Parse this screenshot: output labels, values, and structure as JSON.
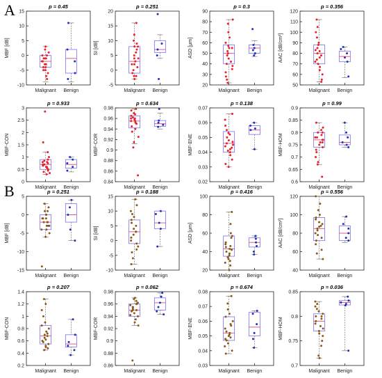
{
  "panel_labels": [
    "A",
    "B"
  ],
  "colors": {
    "box": "#8a7cf0",
    "median": "#e05a8a",
    "mean_marker": "#9a9aee",
    "whisker": "#777777",
    "axis": "#222222",
    "malignant_points_A": "#e8202a",
    "benign_points_A": "#2233bb",
    "malignant_points_B": "#8a5a1a",
    "benign_points_B": "#2233aa"
  },
  "chart_data": [
    {
      "type": "box",
      "group": "A",
      "title": "p = 0.45",
      "ylabel": "MBF [dB]",
      "categories": [
        "Malignant",
        "Benign"
      ],
      "ylim": [
        -10,
        15
      ],
      "yticks": [
        -10,
        -5,
        0,
        5,
        10,
        15
      ],
      "boxes": [
        {
          "q1": -4,
          "median": -2,
          "q3": 0,
          "whisker_low": -9,
          "whisker_high": 3
        },
        {
          "q1": -6,
          "median": -1,
          "q3": 2,
          "whisker_low": -9,
          "whisker_high": 11
        }
      ],
      "points": [
        [
          -1,
          -3,
          0,
          -5,
          2,
          -4,
          -2,
          1,
          -7,
          -3,
          -1,
          -6,
          0,
          -2,
          3,
          -4,
          -8,
          -2,
          -1,
          -5
        ],
        [
          11,
          2,
          -2,
          -6,
          -8
        ]
      ]
    },
    {
      "type": "box",
      "group": "A",
      "title": "p = 0.251",
      "ylabel": "SI [dB]",
      "categories": [
        "Malignant",
        "Benign"
      ],
      "ylim": [
        -5,
        20
      ],
      "yticks": [
        -5,
        0,
        5,
        10,
        15,
        20
      ],
      "boxes": [
        {
          "q1": -1,
          "median": 3,
          "q3": 8,
          "whisker_low": -3,
          "whisker_high": 16
        },
        {
          "q1": 6,
          "median": 7,
          "q3": 10,
          "whisker_low": 4,
          "whisker_high": 12
        }
      ],
      "points": [
        [
          16,
          12,
          9,
          8,
          7,
          5,
          4,
          3,
          2,
          1,
          0,
          -1,
          -2,
          -3,
          2,
          6,
          10,
          -2,
          4,
          8
        ],
        [
          19,
          9,
          7,
          5,
          -3
        ]
      ]
    },
    {
      "type": "box",
      "group": "A",
      "title": "p = 0.3",
      "ylabel": "ASD [μm]",
      "categories": [
        "Malignant",
        "Benign"
      ],
      "ylim": [
        20,
        90
      ],
      "yticks": [
        20,
        30,
        40,
        50,
        60,
        70,
        80,
        90
      ],
      "boxes": [
        {
          "q1": 40,
          "median": 50,
          "q3": 58,
          "whisker_low": 22,
          "whisker_high": 82
        },
        {
          "q1": 50,
          "median": 55,
          "q3": 58,
          "whisker_low": 47,
          "whisker_high": 62
        }
      ],
      "points": [
        [
          82,
          78,
          70,
          65,
          60,
          57,
          55,
          52,
          50,
          48,
          45,
          42,
          40,
          38,
          35,
          32,
          28,
          25,
          22,
          55
        ],
        [
          73,
          58,
          55,
          53,
          50,
          48
        ]
      ]
    },
    {
      "type": "box",
      "group": "A",
      "title": "p = 0.356",
      "ylabel": "AAC [dB/cm³]",
      "categories": [
        "Malignant",
        "Benign"
      ],
      "ylim": [
        50,
        120
      ],
      "yticks": [
        50,
        60,
        70,
        80,
        90,
        100,
        110,
        120
      ],
      "boxes": [
        {
          "q1": 70,
          "median": 80,
          "q3": 88,
          "whisker_low": 53,
          "whisker_high": 112
        },
        {
          "q1": 72,
          "median": 77,
          "q3": 82,
          "whisker_low": 57,
          "whisker_high": 86
        }
      ],
      "points": [
        [
          112,
          105,
          100,
          95,
          90,
          88,
          85,
          83,
          80,
          78,
          76,
          74,
          72,
          70,
          67,
          64,
          60,
          55,
          53,
          82
        ],
        [
          86,
          84,
          80,
          76,
          72,
          58
        ]
      ]
    },
    {
      "type": "box",
      "group": "A",
      "title": "p = 0.933",
      "ylabel": "MBF-CON",
      "categories": [
        "Malignant",
        "Benign"
      ],
      "ylim": [
        0,
        3
      ],
      "yticks": [
        0,
        0.5,
        1,
        1.5,
        2,
        2.5,
        3
      ],
      "boxes": [
        {
          "q1": 0.5,
          "median": 0.7,
          "q3": 0.9,
          "whisker_low": 0.3,
          "whisker_high": 1.2
        },
        {
          "q1": 0.55,
          "median": 0.7,
          "q3": 0.9,
          "whisker_low": 0.4,
          "whisker_high": 1.0
        }
      ],
      "points": [
        [
          2.85,
          1.6,
          1.2,
          1.0,
          0.9,
          0.85,
          0.8,
          0.75,
          0.7,
          0.65,
          0.6,
          0.55,
          0.5,
          0.45,
          0.4,
          0.35,
          0.3,
          0.7,
          0.8,
          0.6
        ],
        [
          1.0,
          0.9,
          0.75,
          0.6,
          0.45
        ]
      ]
    },
    {
      "type": "box",
      "group": "A",
      "title": "p = 0.634",
      "ylabel": "MBF-COR",
      "categories": [
        "Malignant",
        "Benign"
      ],
      "ylim": [
        0.84,
        0.98
      ],
      "yticks": [
        0.84,
        0.86,
        0.88,
        0.9,
        0.92,
        0.94,
        0.96,
        0.98
      ],
      "boxes": [
        {
          "q1": 0.942,
          "median": 0.955,
          "q3": 0.965,
          "whisker_low": 0.912,
          "whisker_high": 0.978
        },
        {
          "q1": 0.945,
          "median": 0.95,
          "q3": 0.956,
          "whisker_low": 0.94,
          "whisker_high": 0.97
        }
      ],
      "points": [
        [
          0.978,
          0.975,
          0.97,
          0.968,
          0.965,
          0.962,
          0.96,
          0.958,
          0.955,
          0.952,
          0.95,
          0.945,
          0.94,
          0.935,
          0.925,
          0.915,
          0.905,
          0.852,
          0.96,
          0.955
        ],
        [
          0.978,
          0.956,
          0.952,
          0.948,
          0.944
        ]
      ]
    },
    {
      "type": "box",
      "group": "A",
      "title": "p = 0.138",
      "ylabel": "MBF-ENE",
      "categories": [
        "Malignant",
        "Benign"
      ],
      "ylim": [
        0.02,
        0.07
      ],
      "yticks": [
        0.02,
        0.03,
        0.04,
        0.05,
        0.06,
        0.07
      ],
      "boxes": [
        {
          "q1": 0.04,
          "median": 0.046,
          "q3": 0.054,
          "whisker_low": 0.03,
          "whisker_high": 0.066
        },
        {
          "q1": 0.052,
          "median": 0.055,
          "q3": 0.058,
          "whisker_low": 0.042,
          "whisker_high": 0.06
        }
      ],
      "points": [
        [
          0.066,
          0.062,
          0.058,
          0.055,
          0.053,
          0.05,
          0.048,
          0.046,
          0.045,
          0.044,
          0.043,
          0.042,
          0.041,
          0.04,
          0.038,
          0.035,
          0.032,
          0.03,
          0.047,
          0.052
        ],
        [
          0.06,
          0.058,
          0.056,
          0.055,
          0.042
        ]
      ]
    },
    {
      "type": "box",
      "group": "A",
      "title": "p = 0.99",
      "ylabel": "MBF-HOM",
      "categories": [
        "Malignant",
        "Benign"
      ],
      "ylim": [
        0.6,
        0.9
      ],
      "yticks": [
        0.6,
        0.65,
        0.7,
        0.75,
        0.8,
        0.85,
        0.9
      ],
      "boxes": [
        {
          "q1": 0.74,
          "median": 0.77,
          "q3": 0.8,
          "whisker_low": 0.67,
          "whisker_high": 0.84
        },
        {
          "q1": 0.75,
          "median": 0.76,
          "q3": 0.79,
          "whisker_low": 0.74,
          "whisker_high": 0.84
        }
      ],
      "points": [
        [
          0.84,
          0.82,
          0.81,
          0.8,
          0.79,
          0.78,
          0.77,
          0.77,
          0.76,
          0.75,
          0.74,
          0.73,
          0.72,
          0.7,
          0.68,
          0.67,
          0.62,
          0.78,
          0.8,
          0.76
        ],
        [
          0.84,
          0.8,
          0.78,
          0.76,
          0.75,
          0.74
        ]
      ]
    },
    {
      "type": "box",
      "group": "B",
      "title": "p = 0.251",
      "ylabel": "MBF [dB]",
      "categories": [
        "Malignant",
        "Benign"
      ],
      "ylim": [
        -15,
        5
      ],
      "yticks": [
        -15,
        -10,
        -5,
        0,
        5
      ],
      "boxes": [
        {
          "q1": -4,
          "median": -2,
          "q3": 0,
          "whisker_low": -6,
          "whisker_high": 3
        },
        {
          "q1": -2,
          "median": 0,
          "q3": 3,
          "whisker_low": -7,
          "whisker_high": 4
        }
      ],
      "points": [
        [
          3,
          2,
          1,
          0,
          -1,
          -1,
          -2,
          -2,
          -3,
          -3,
          -4,
          -4,
          -5,
          -6,
          -14,
          -2,
          0,
          -1,
          1,
          -3
        ],
        [
          4,
          2,
          0,
          -4,
          -7
        ]
      ]
    },
    {
      "type": "box",
      "group": "B",
      "title": "p = 0.188",
      "ylabel": "SI [dB]",
      "categories": [
        "Malignant",
        "Benign"
      ],
      "ylim": [
        -10,
        15
      ],
      "yticks": [
        -10,
        -5,
        0,
        5,
        10,
        15
      ],
      "boxes": [
        {
          "q1": -1,
          "median": 3,
          "q3": 7,
          "whisker_low": -8,
          "whisker_high": 14
        },
        {
          "q1": 4,
          "median": 6,
          "q3": 10,
          "whisker_low": -2,
          "whisker_high": 10
        }
      ],
      "points": [
        [
          14,
          12,
          10,
          9,
          8,
          6,
          5,
          4,
          3,
          2,
          1,
          0,
          -1,
          -2,
          -3,
          -4,
          -6,
          -8,
          7,
          3
        ],
        [
          10,
          9,
          6,
          4,
          -2
        ]
      ]
    },
    {
      "type": "box",
      "group": "B",
      "title": "p = 0.416",
      "ylabel": "ASD [μm]",
      "categories": [
        "Malignant",
        "Benign"
      ],
      "ylim": [
        20,
        100
      ],
      "yticks": [
        20,
        40,
        60,
        80,
        100
      ],
      "boxes": [
        {
          "q1": 35,
          "median": 43,
          "q3": 57,
          "whisker_low": 20,
          "whisker_high": 83
        },
        {
          "q1": 45,
          "median": 50,
          "q3": 55,
          "whisker_low": 37,
          "whisker_high": 57
        }
      ],
      "points": [
        [
          83,
          70,
          60,
          57,
          55,
          50,
          48,
          45,
          43,
          42,
          40,
          38,
          36,
          34,
          32,
          30,
          28,
          25,
          20,
          46
        ],
        [
          57,
          54,
          50,
          46,
          40,
          37
        ]
      ]
    },
    {
      "type": "box",
      "group": "B",
      "title": "p = 0.556",
      "ylabel": "AAC [dB/cm³]",
      "categories": [
        "Malignant",
        "Benign"
      ],
      "ylim": [
        40,
        120
      ],
      "yticks": [
        40,
        60,
        80,
        100,
        120
      ],
      "boxes": [
        {
          "q1": 72,
          "median": 85,
          "q3": 97,
          "whisker_low": 52,
          "whisker_high": 120
        },
        {
          "q1": 72,
          "median": 80,
          "q3": 88,
          "whisker_low": 70,
          "whisker_high": 98
        }
      ],
      "points": [
        [
          120,
          112,
          105,
          100,
          97,
          95,
          92,
          90,
          87,
          85,
          83,
          80,
          78,
          75,
          72,
          68,
          62,
          58,
          52,
          88
        ],
        [
          98,
          90,
          85,
          80,
          75,
          72
        ]
      ]
    },
    {
      "type": "box",
      "group": "B",
      "title": "p = 0.207",
      "ylabel": "MBF-CON",
      "categories": [
        "Malignant",
        "Benign"
      ],
      "ylim": [
        0.2,
        1.4
      ],
      "yticks": [
        0.2,
        0.4,
        0.6,
        0.8,
        1,
        1.2,
        1.4
      ],
      "boxes": [
        {
          "q1": 0.55,
          "median": 0.68,
          "q3": 0.85,
          "whisker_low": 0.45,
          "whisker_high": 1.28
        },
        {
          "q1": 0.5,
          "median": 0.55,
          "q3": 0.7,
          "whisker_low": 0.37,
          "whisker_high": 0.95
        }
      ],
      "points": [
        [
          1.28,
          1.2,
          1.1,
          1.0,
          0.9,
          0.85,
          0.8,
          0.75,
          0.7,
          0.68,
          0.65,
          0.62,
          0.6,
          0.58,
          0.55,
          0.52,
          0.5,
          0.48,
          0.45,
          0.72
        ],
        [
          0.95,
          0.7,
          0.58,
          0.52,
          0.45,
          0.37
        ]
      ]
    },
    {
      "type": "box",
      "group": "B",
      "title": "p = 0.062",
      "ylabel": "MBF-COR",
      "categories": [
        "Malignant",
        "Benign"
      ],
      "ylim": [
        0.86,
        0.98
      ],
      "yticks": [
        0.86,
        0.88,
        0.9,
        0.92,
        0.94,
        0.96,
        0.98
      ],
      "boxes": [
        {
          "q1": 0.94,
          "median": 0.95,
          "q3": 0.96,
          "whisker_low": 0.925,
          "whisker_high": 0.97
        },
        {
          "q1": 0.95,
          "median": 0.962,
          "q3": 0.97,
          "whisker_low": 0.943,
          "whisker_high": 0.978
        }
      ],
      "points": [
        [
          0.97,
          0.968,
          0.965,
          0.962,
          0.96,
          0.958,
          0.955,
          0.952,
          0.95,
          0.948,
          0.945,
          0.942,
          0.94,
          0.935,
          0.93,
          0.925,
          0.868,
          0.955,
          0.96,
          0.95
        ],
        [
          0.978,
          0.972,
          0.962,
          0.955,
          0.948,
          0.943
        ]
      ]
    },
    {
      "type": "box",
      "group": "B",
      "title": "p = 0.674",
      "ylabel": "MBF-ENE",
      "categories": [
        "Malignant",
        "Benign"
      ],
      "ylim": [
        0.03,
        0.08
      ],
      "yticks": [
        0.03,
        0.04,
        0.05,
        0.06,
        0.07,
        0.08
      ],
      "boxes": [
        {
          "q1": 0.047,
          "median": 0.052,
          "q3": 0.063,
          "whisker_low": 0.038,
          "whisker_high": 0.077
        },
        {
          "q1": 0.05,
          "median": 0.056,
          "q3": 0.066,
          "whisker_low": 0.042,
          "whisker_high": 0.067
        }
      ],
      "points": [
        [
          0.077,
          0.072,
          0.068,
          0.065,
          0.063,
          0.06,
          0.058,
          0.055,
          0.053,
          0.052,
          0.051,
          0.05,
          0.049,
          0.048,
          0.047,
          0.045,
          0.043,
          0.04,
          0.038,
          0.057
        ],
        [
          0.067,
          0.065,
          0.058,
          0.052,
          0.048,
          0.042
        ]
      ]
    },
    {
      "type": "box",
      "group": "B",
      "title": "p = 0.036",
      "ylabel": "MBF-HOM",
      "categories": [
        "Malignant",
        "Benign"
      ],
      "ylim": [
        0.7,
        0.85
      ],
      "yticks": [
        0.7,
        0.75,
        0.8,
        0.85
      ],
      "boxes": [
        {
          "q1": 0.77,
          "median": 0.79,
          "q3": 0.805,
          "whisker_low": 0.715,
          "whisker_high": 0.83
        },
        {
          "q1": 0.823,
          "median": 0.828,
          "q3": 0.832,
          "whisker_low": 0.73,
          "whisker_high": 0.84
        }
      ],
      "points": [
        [
          0.83,
          0.825,
          0.82,
          0.815,
          0.81,
          0.805,
          0.8,
          0.795,
          0.79,
          0.785,
          0.78,
          0.775,
          0.77,
          0.765,
          0.76,
          0.75,
          0.74,
          0.72,
          0.715,
          0.8
        ],
        [
          0.84,
          0.832,
          0.828,
          0.825,
          0.822,
          0.73
        ]
      ]
    }
  ]
}
